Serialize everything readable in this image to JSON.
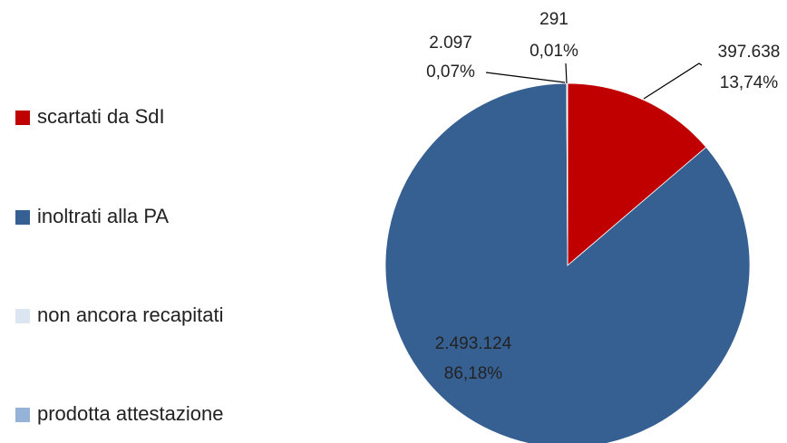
{
  "chart_data": {
    "type": "pie",
    "categories": [
      "scartati da SdI",
      "inoltrati alla PA",
      "non ancora recapitati",
      "prodotta attestazione"
    ],
    "values": [
      397638,
      2493124,
      291,
      2097
    ],
    "value_labels": [
      "397.638",
      "2.493.124",
      "291",
      "2.097"
    ],
    "percent_labels": [
      "13,74%",
      "86,18%",
      "0,01%",
      "0,07%"
    ],
    "colors": [
      "#c00000",
      "#376092",
      "#dce6f2",
      "#95b3d7"
    ],
    "legend": "left"
  }
}
